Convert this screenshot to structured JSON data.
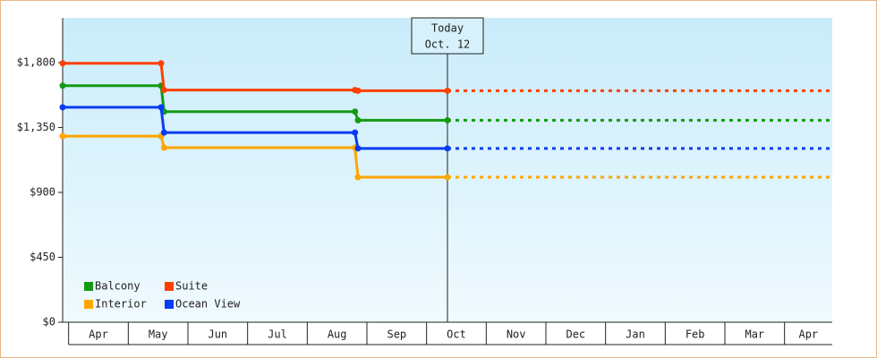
{
  "chart_data": {
    "type": "step-line",
    "x": [
      -0.1,
      1.55,
      1.6,
      4.8,
      4.85,
      6.35
    ],
    "xlim": [
      -0.1,
      12.8
    ],
    "xticks": [
      {
        "value": 0,
        "label": "Apr"
      },
      {
        "value": 1,
        "label": "May"
      },
      {
        "value": 2,
        "label": "Jun"
      },
      {
        "value": 3,
        "label": "Jul"
      },
      {
        "value": 4,
        "label": "Aug"
      },
      {
        "value": 5,
        "label": "Sep"
      },
      {
        "value": 6,
        "label": "Oct"
      },
      {
        "value": 7,
        "label": "Nov"
      },
      {
        "value": 8,
        "label": "Dec"
      },
      {
        "value": 9,
        "label": "Jan"
      },
      {
        "value": 10,
        "label": "Feb"
      },
      {
        "value": 11,
        "label": "Mar"
      },
      {
        "value": 12,
        "label": "Apr"
      }
    ],
    "ylim": [
      0,
      2110
    ],
    "yticks": [
      {
        "value": 0,
        "label": "$0"
      },
      {
        "value": 450,
        "label": "$450"
      },
      {
        "value": 900,
        "label": "$900"
      },
      {
        "value": 1350,
        "label": "$1,350"
      },
      {
        "value": 1800,
        "label": "$1,800"
      }
    ],
    "series": [
      {
        "name": "Balcony",
        "color": "#139a13",
        "values": [
          1640,
          1640,
          1460,
          1460,
          1400,
          1400
        ]
      },
      {
        "name": "Suite",
        "color": "#ff4000",
        "values": [
          1795,
          1795,
          1610,
          1610,
          1605,
          1605
        ]
      },
      {
        "name": "Interior",
        "color": "#ffa500",
        "values": [
          1290,
          1290,
          1210,
          1210,
          1005,
          1005
        ]
      },
      {
        "name": "Ocean View",
        "color": "#0a3cf5",
        "values": [
          1490,
          1490,
          1315,
          1315,
          1205,
          1205
        ]
      }
    ],
    "annotation": {
      "text": [
        "Today",
        "Oct. 12"
      ],
      "x": 6.35
    },
    "legend": "lower-left"
  }
}
